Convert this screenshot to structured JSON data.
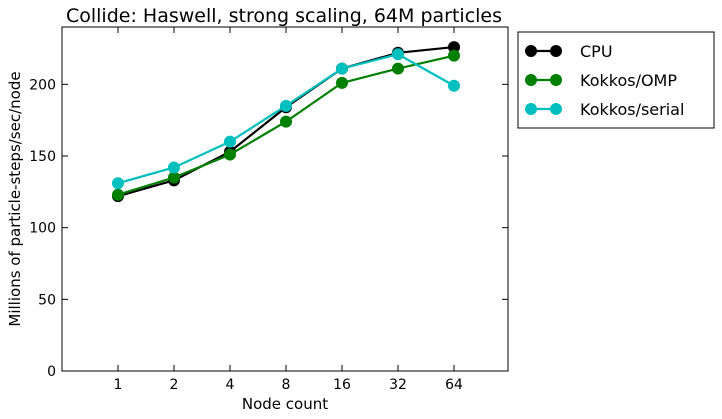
{
  "chart_data": {
    "type": "line",
    "title": "Collide: Haswell, strong scaling, 64M particles",
    "xlabel": "Node count",
    "ylabel": "Millions of particle-steps/sec/node",
    "categories": [
      "1",
      "2",
      "4",
      "8",
      "16",
      "32",
      "64"
    ],
    "ylim": [
      0,
      240
    ],
    "yticks": [
      0,
      50,
      100,
      150,
      200
    ],
    "grid": false,
    "legend_position": "outside-right-top",
    "series": [
      {
        "name": "CPU",
        "color": "#000000",
        "values": [
          122,
          133,
          153,
          184,
          211,
          222,
          226
        ]
      },
      {
        "name": "Kokkos/OMP",
        "color": "#008000",
        "values": [
          123,
          135,
          151,
          174,
          201,
          211,
          220
        ]
      },
      {
        "name": "Kokkos/serial",
        "color": "#00bfbf",
        "values": [
          131,
          142,
          160,
          185,
          211,
          221,
          199
        ]
      }
    ]
  }
}
